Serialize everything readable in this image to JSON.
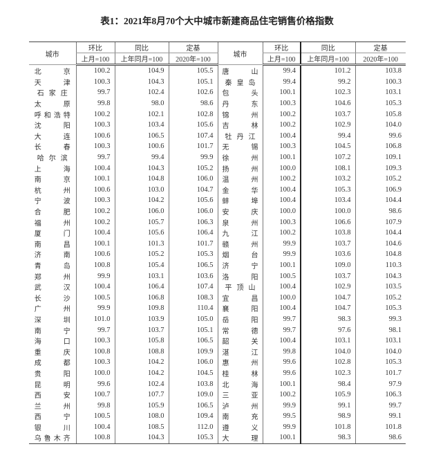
{
  "title": "表1：2021年8月70个大中城市新建商品住宅销售价格指数",
  "header": {
    "city": "城市",
    "mom": "环比",
    "yoy": "同比",
    "base": "定基",
    "mom_sub": "上月=100",
    "yoy_sub": "上年同月=100",
    "base_sub": "2020年=100"
  },
  "left_rows": [
    [
      "北京",
      "100.2",
      "104.9",
      "105.5"
    ],
    [
      "天津",
      "100.3",
      "104.3",
      "105.1"
    ],
    [
      "石家庄",
      "99.7",
      "102.4",
      "102.6"
    ],
    [
      "太原",
      "99.8",
      "98.0",
      "98.6"
    ],
    [
      "呼和浩特",
      "100.2",
      "102.1",
      "102.8"
    ],
    [
      "沈阳",
      "100.3",
      "103.4",
      "105.6"
    ],
    [
      "大连",
      "100.6",
      "106.5",
      "107.4"
    ],
    [
      "长春",
      "100.3",
      "100.6",
      "101.7"
    ],
    [
      "哈尔滨",
      "99.7",
      "99.4",
      "99.9"
    ],
    [
      "上海",
      "100.4",
      "104.3",
      "105.2"
    ],
    [
      "南京",
      "100.1",
      "104.8",
      "106.0"
    ],
    [
      "杭州",
      "100.6",
      "103.0",
      "104.7"
    ],
    [
      "宁波",
      "100.3",
      "104.2",
      "105.6"
    ],
    [
      "合肥",
      "100.2",
      "106.0",
      "106.0"
    ],
    [
      "福州",
      "100.2",
      "105.7",
      "106.3"
    ],
    [
      "厦门",
      "100.4",
      "105.6",
      "106.4"
    ],
    [
      "南昌",
      "100.1",
      "101.3",
      "101.7"
    ],
    [
      "济南",
      "100.6",
      "105.2",
      "105.3"
    ],
    [
      "青岛",
      "100.8",
      "105.4",
      "106.5"
    ],
    [
      "郑州",
      "99.9",
      "103.1",
      "103.6"
    ],
    [
      "武汉",
      "100.4",
      "106.4",
      "107.4"
    ],
    [
      "长沙",
      "100.5",
      "106.8",
      "108.3"
    ],
    [
      "广州",
      "99.9",
      "109.8",
      "110.4"
    ],
    [
      "深圳",
      "101.0",
      "103.9",
      "105.0"
    ],
    [
      "南宁",
      "99.7",
      "103.7",
      "105.1"
    ],
    [
      "海口",
      "100.3",
      "105.8",
      "106.5"
    ],
    [
      "重庆",
      "100.8",
      "108.8",
      "109.9"
    ],
    [
      "成都",
      "100.3",
      "104.2",
      "106.0"
    ],
    [
      "贵阳",
      "100.0",
      "104.2",
      "104.5"
    ],
    [
      "昆明",
      "99.6",
      "102.4",
      "103.8"
    ],
    [
      "西安",
      "100.7",
      "107.7",
      "109.0"
    ],
    [
      "兰州",
      "99.8",
      "105.9",
      "106.5"
    ],
    [
      "西宁",
      "100.5",
      "108.0",
      "109.4"
    ],
    [
      "银川",
      "100.4",
      "108.5",
      "112.0"
    ],
    [
      "乌鲁木齐",
      "100.8",
      "104.3",
      "105.3"
    ]
  ],
  "right_rows": [
    [
      "唐山",
      "99.4",
      "101.2",
      "103.8"
    ],
    [
      "秦皇岛",
      "99.4",
      "99.2",
      "100.3"
    ],
    [
      "包头",
      "100.1",
      "102.3",
      "103.1"
    ],
    [
      "丹东",
      "100.3",
      "104.6",
      "105.3"
    ],
    [
      "锦州",
      "100.2",
      "103.7",
      "105.8"
    ],
    [
      "吉林",
      "100.2",
      "102.9",
      "104.0"
    ],
    [
      "牡丹江",
      "100.4",
      "99.4",
      "99.6"
    ],
    [
      "无锡",
      "100.3",
      "104.5",
      "106.8"
    ],
    [
      "徐州",
      "100.1",
      "107.2",
      "109.1"
    ],
    [
      "扬州",
      "100.0",
      "108.1",
      "109.3"
    ],
    [
      "温州",
      "100.2",
      "103.2",
      "105.2"
    ],
    [
      "金华",
      "100.4",
      "105.3",
      "106.9"
    ],
    [
      "蚌埠",
      "100.4",
      "103.4",
      "104.4"
    ],
    [
      "安庆",
      "100.0",
      "100.0",
      "98.6"
    ],
    [
      "泉州",
      "100.3",
      "106.6",
      "107.9"
    ],
    [
      "九江",
      "100.2",
      "103.8",
      "104.4"
    ],
    [
      "赣州",
      "99.9",
      "103.7",
      "104.6"
    ],
    [
      "烟台",
      "99.9",
      "103.6",
      "104.8"
    ],
    [
      "济宁",
      "100.1",
      "109.0",
      "110.3"
    ],
    [
      "洛阳",
      "100.5",
      "103.7",
      "104.3"
    ],
    [
      "平顶山",
      "100.4",
      "102.9",
      "103.5"
    ],
    [
      "宜昌",
      "100.0",
      "104.7",
      "105.2"
    ],
    [
      "襄阳",
      "100.4",
      "104.7",
      "105.3"
    ],
    [
      "岳阳",
      "99.7",
      "98.3",
      "99.3"
    ],
    [
      "常德",
      "99.7",
      "97.6",
      "98.1"
    ],
    [
      "韶关",
      "100.4",
      "103.1",
      "103.1"
    ],
    [
      "湛江",
      "99.8",
      "104.0",
      "104.0"
    ],
    [
      "惠州",
      "99.6",
      "102.8",
      "105.3"
    ],
    [
      "桂林",
      "99.6",
      "102.3",
      "101.7"
    ],
    [
      "北海",
      "100.1",
      "98.4",
      "97.9"
    ],
    [
      "三亚",
      "100.2",
      "105.9",
      "106.3"
    ],
    [
      "泸州",
      "99.9",
      "99.1",
      "99.7"
    ],
    [
      "南充",
      "99.5",
      "98.9",
      "99.1"
    ],
    [
      "遵义",
      "99.9",
      "101.8",
      "101.8"
    ],
    [
      "大理",
      "100.1",
      "98.3",
      "98.6"
    ]
  ]
}
